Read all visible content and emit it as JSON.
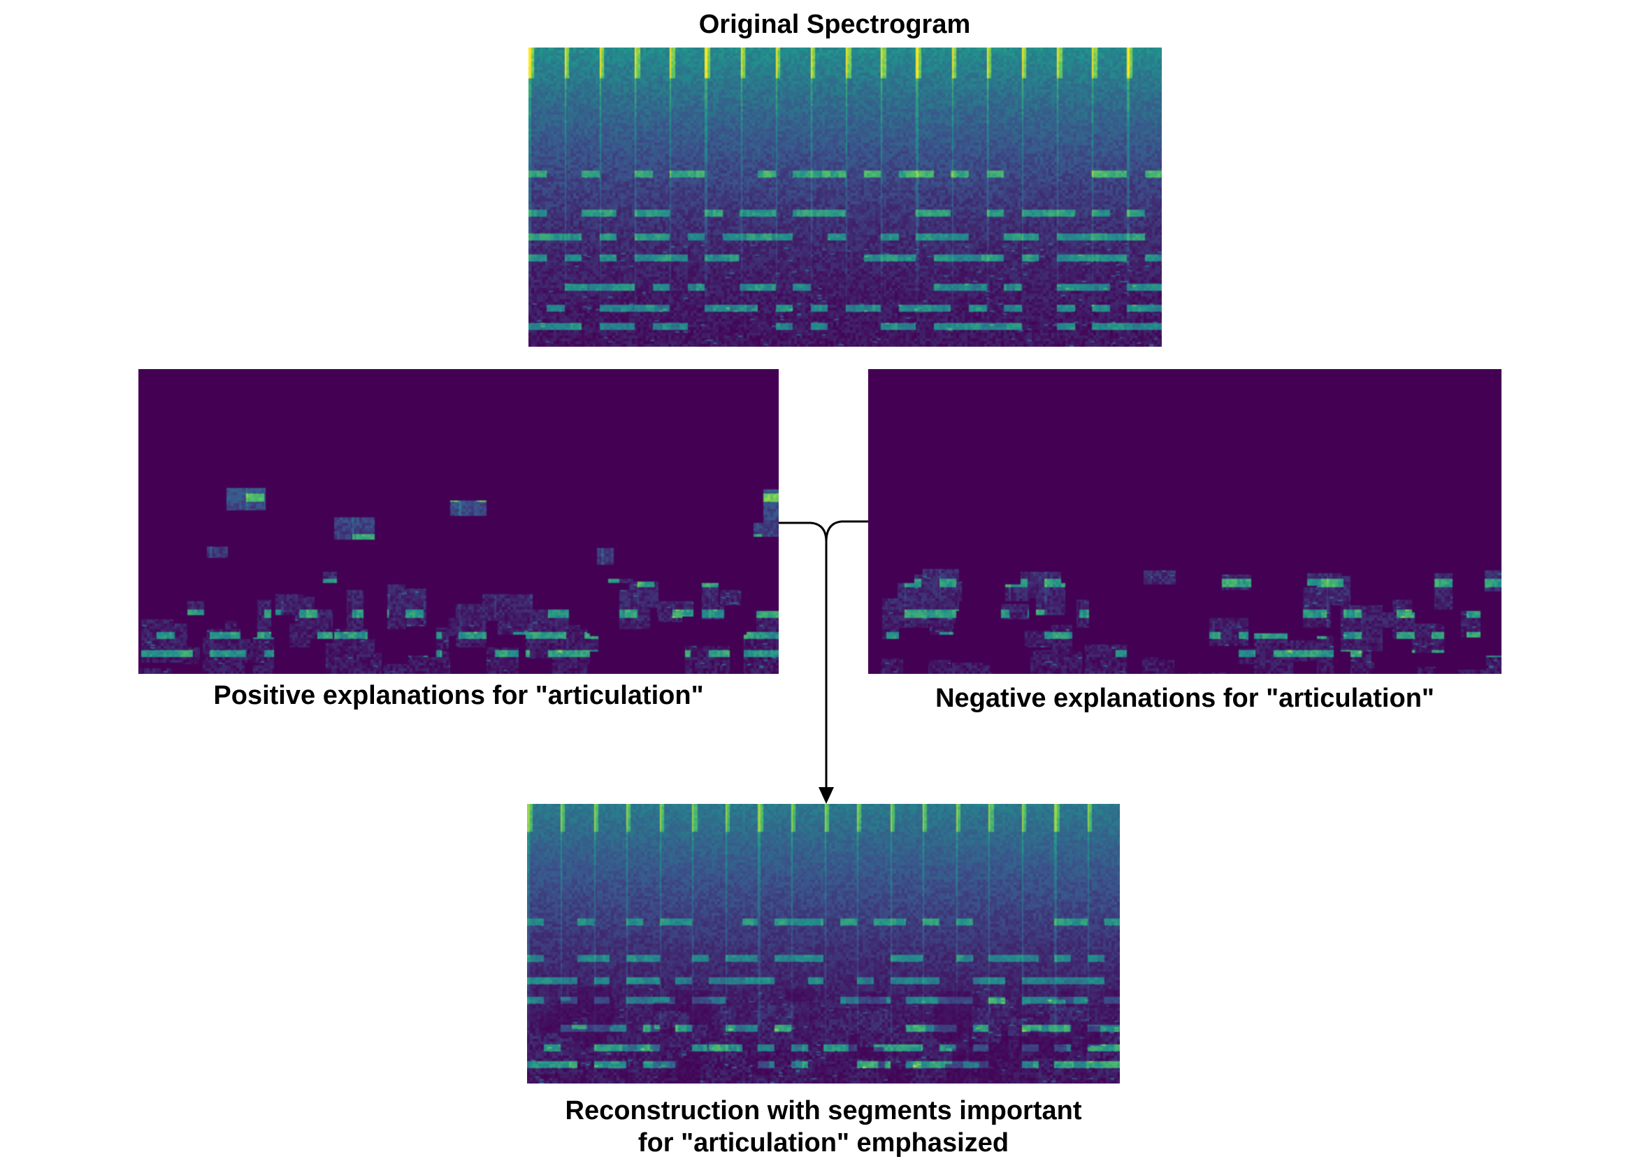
{
  "figure": {
    "title": "Original Spectrogram",
    "panels": [
      {
        "id": "original",
        "colormap": "viridis"
      },
      {
        "id": "positive",
        "caption": "Positive explanations for \"articulation\"",
        "colormap": "viridis"
      },
      {
        "id": "negative",
        "caption": "Negative explanations for \"articulation\"",
        "colormap": "viridis"
      },
      {
        "id": "reconstruction",
        "caption_line1": "Reconstruction with segments important",
        "caption_line2": "for \"articulation\" emphasized",
        "colormap": "viridis"
      }
    ]
  },
  "colors": {
    "background_mask": "#440154",
    "connector": "#000000"
  }
}
